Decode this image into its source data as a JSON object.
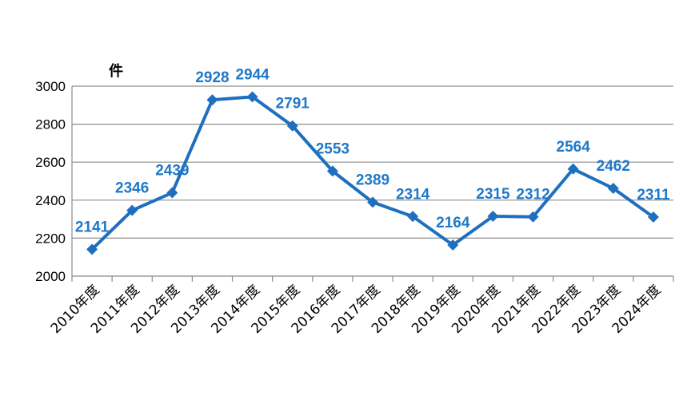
{
  "chart_data": {
    "type": "line",
    "title": "",
    "xlabel": "",
    "ylabel": "件",
    "ylim": [
      2000,
      3000
    ],
    "yticks": [
      2000,
      2200,
      2400,
      2600,
      2800,
      3000
    ],
    "grid": true,
    "categories": [
      "2010年度",
      "2011年度",
      "2012年度",
      "2013年度",
      "2014年度",
      "2015年度",
      "2016年度",
      "2017年度",
      "2018年度",
      "2019年度",
      "2020年度",
      "2021年度",
      "2022年度",
      "2023年度",
      "2024年度"
    ],
    "series": [
      {
        "values": [
          2141,
          2346,
          2439,
          2928,
          2944,
          2791,
          2553,
          2389,
          2314,
          2164,
          2315,
          2312,
          2564,
          2462,
          2311
        ]
      }
    ],
    "data_labels": [
      "2141",
      "2346",
      "2439",
      "2928",
      "2944",
      "2791",
      "2553",
      "2389",
      "2314",
      "2164",
      "2315",
      "2312",
      "2564",
      "2462",
      "2311"
    ],
    "colors": {
      "line": "#1f6fbf",
      "marker": "#1f6fbf",
      "label": "#1f78c8",
      "grid": "#8c8c8c",
      "axis": "#8c8c8c"
    },
    "marker": "diamond"
  }
}
